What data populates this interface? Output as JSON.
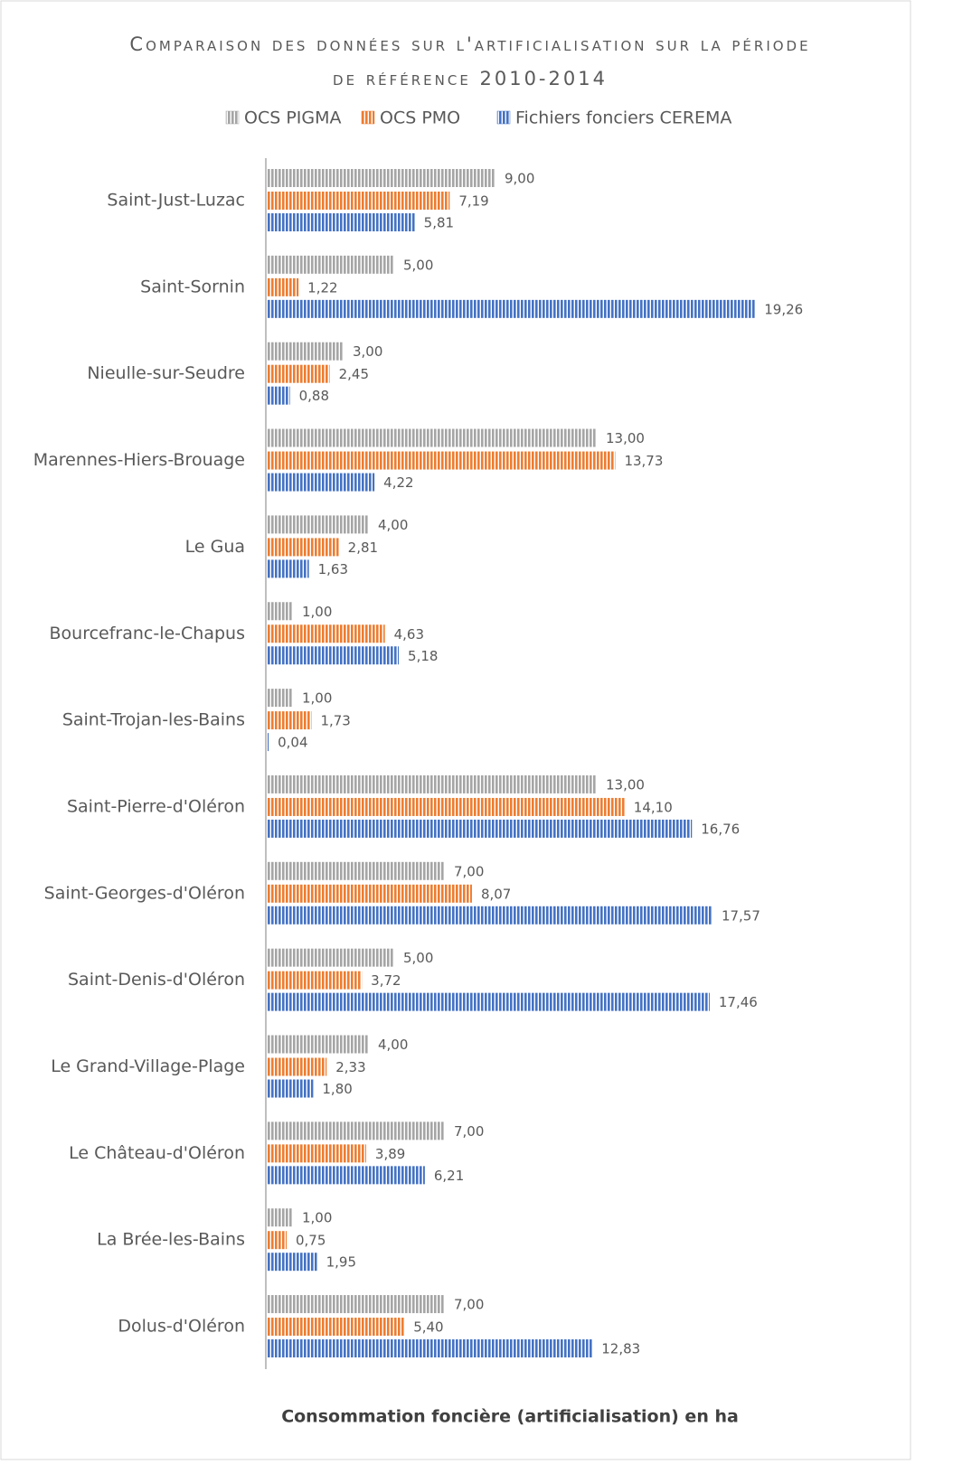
{
  "chart_data": {
    "type": "bar",
    "orientation": "horizontal",
    "title": "Comparaison des données sur l'artificialisation sur la période de référence 2010-2014",
    "xlabel": "Consommation foncière (artificialisation) en ha",
    "categories": [
      "Saint-Just-Luzac",
      "Saint-Sornin",
      "Nieulle-sur-Seudre",
      "Marennes-Hiers-Brouage",
      "Le Gua",
      "Bourcefranc-le-Chapus",
      "Saint-Trojan-les-Bains",
      "Saint-Pierre-d'Oléron",
      "Saint-Georges-d'Oléron",
      "Saint-Denis-d'Oléron",
      "Le Grand-Village-Plage",
      "Le Château-d'Oléron",
      "La Brée-les-Bains",
      "Dolus-d'Oléron"
    ],
    "series": [
      {
        "name": "OCS PIGMA",
        "color": "#a5a5a5",
        "values": [
          9,
          5,
          3,
          13,
          4,
          1,
          1,
          13,
          7,
          5,
          4,
          7,
          1,
          7
        ],
        "value_labels": [
          "9,00",
          "5,00",
          "3,00",
          "13,00",
          "4,00",
          "1,00",
          "1,00",
          "13,00",
          "7,00",
          "5,00",
          "4,00",
          "7,00",
          "1,00",
          "7,00"
        ]
      },
      {
        "name": "OCS PMO",
        "color": "#ed7d31",
        "values": [
          7.19,
          1.22,
          2.45,
          13.73,
          2.81,
          4.63,
          1.73,
          14.1,
          8.07,
          3.72,
          2.33,
          3.89,
          0.75,
          5.4
        ],
        "value_labels": [
          "7,19",
          "1,22",
          "2,45",
          "13,73",
          "2,81",
          "4,63",
          "1,73",
          "14,10",
          "8,07",
          "3,72",
          "2,33",
          "3,89",
          "0,75",
          "5,40"
        ]
      },
      {
        "name": "Fichiers fonciers CEREMA",
        "color": "#4472c4",
        "values": [
          5.81,
          19.26,
          0.88,
          4.22,
          1.63,
          5.18,
          0.04,
          16.76,
          17.57,
          17.46,
          1.8,
          6.21,
          1.95,
          12.83
        ],
        "value_labels": [
          "5,81",
          "19,26",
          "0,88",
          "4,22",
          "1,63",
          "5,18",
          "0,04",
          "16,76",
          "17,57",
          "17,46",
          "1,80",
          "6,21",
          "1,95",
          "12,83"
        ]
      }
    ],
    "xlim": [
      0,
      20
    ],
    "legend": "top"
  }
}
